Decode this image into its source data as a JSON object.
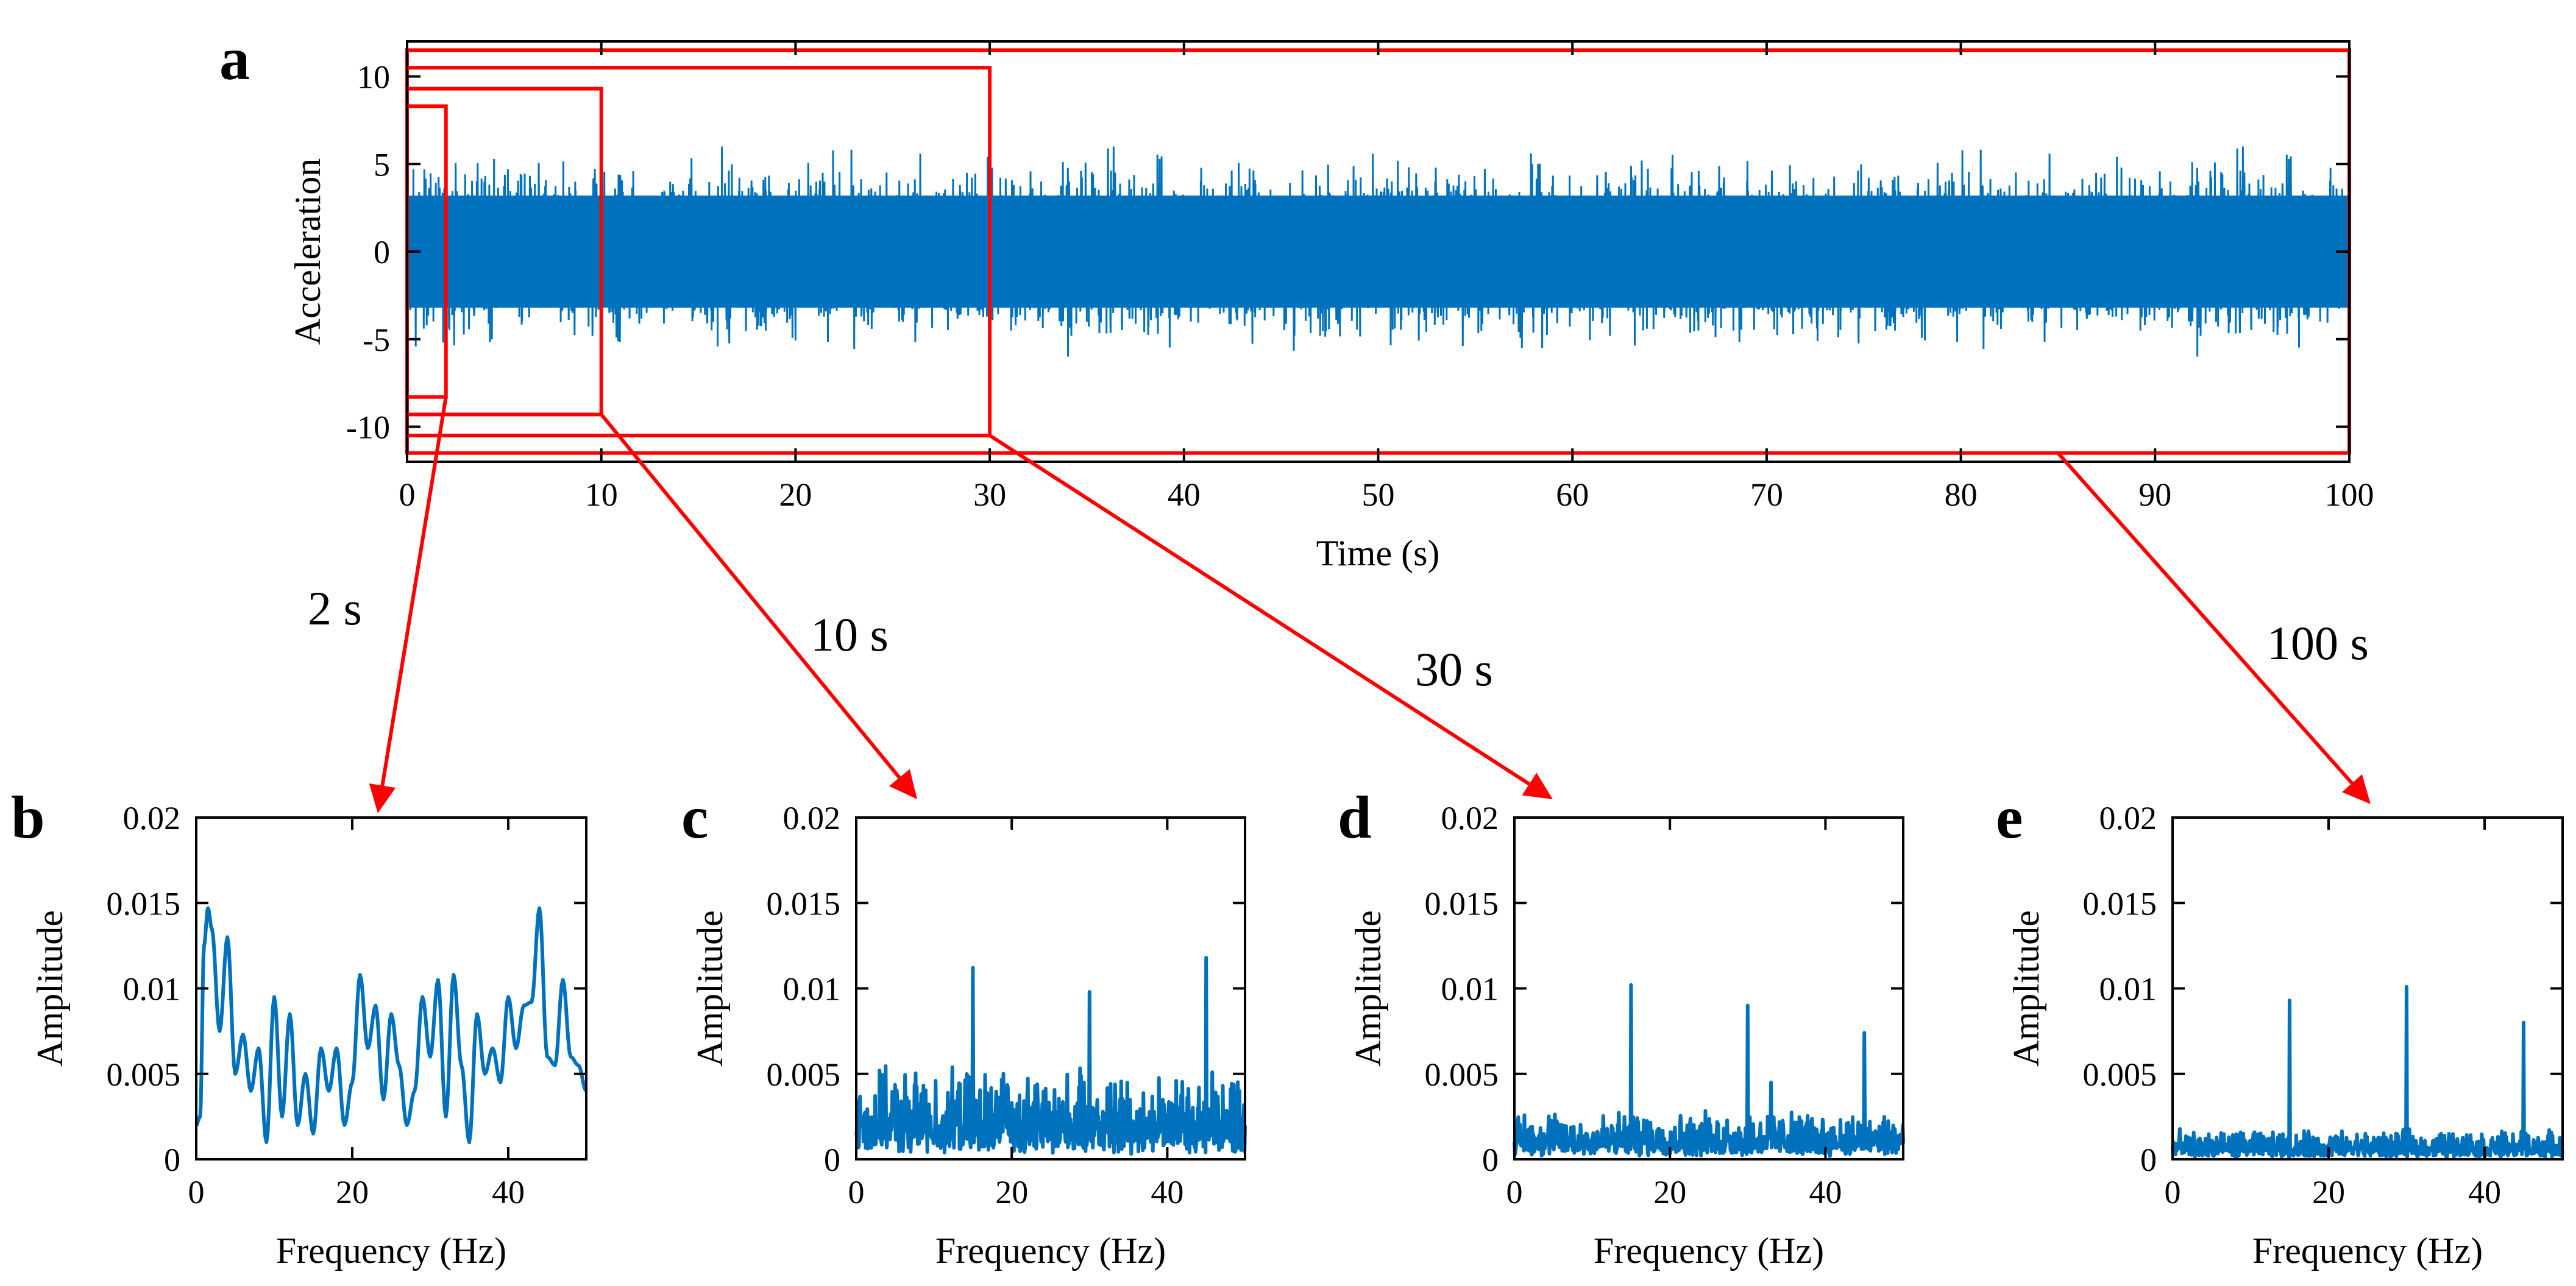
{
  "figure": {
    "colors": {
      "signal": "#0072BD",
      "highlight": "#FF0000",
      "axes": "#000000"
    }
  },
  "panels": {
    "a": {
      "letter": "a",
      "xlabel": "Time (s)",
      "ylabel": "Acceleration",
      "xticks": [
        "0",
        "10",
        "20",
        "30",
        "40",
        "50",
        "60",
        "70",
        "80",
        "90",
        "100"
      ],
      "yticks": [
        "10",
        "5",
        "0",
        "-5",
        "-10"
      ]
    },
    "b": {
      "letter": "b",
      "duration_label": "2 s"
    },
    "c": {
      "letter": "c",
      "duration_label": "10 s"
    },
    "d": {
      "letter": "d",
      "duration_label": "30 s"
    },
    "e": {
      "letter": "e",
      "duration_label": "100 s"
    },
    "spectrum_axes": {
      "xlabel": "Frequency (Hz)",
      "ylabel": "Amplitude",
      "xticks": [
        "0",
        "20",
        "40"
      ],
      "yticks": [
        "0.02",
        "0.015",
        "0.01",
        "0.005",
        "0"
      ]
    }
  },
  "chart_data": [
    {
      "id": "a",
      "type": "line",
      "xlabel": "Time (s)",
      "ylabel": "Acceleration",
      "xlim": [
        0,
        100
      ],
      "ylim": [
        -12,
        12
      ],
      "grid": false,
      "series": [
        {
          "values": "dense random acceleration signal",
          "envelope_typical": [
            -4.5,
            4.5
          ],
          "envelope_peak": [
            -6,
            6
          ]
        }
      ],
      "highlight_windows": [
        {
          "duration_s": 2,
          "t": [
            0,
            2
          ],
          "y": [
            -8.3,
            8.3
          ]
        },
        {
          "duration_s": 10,
          "t": [
            0,
            10
          ],
          "y": [
            -9.3,
            9.3
          ]
        },
        {
          "duration_s": 30,
          "t": [
            0,
            30
          ],
          "y": [
            -10.5,
            10.5
          ]
        },
        {
          "duration_s": 100,
          "t": [
            0,
            100
          ],
          "y": [
            -11.5,
            11.5
          ]
        }
      ]
    },
    {
      "id": "b",
      "type": "line",
      "window_s": 2,
      "xlabel": "Frequency (Hz)",
      "ylabel": "Amplitude",
      "xlim": [
        0,
        50
      ],
      "ylim": [
        0,
        0.02
      ],
      "x": [
        0,
        0.5,
        1,
        1.5,
        2,
        3,
        4,
        5,
        6,
        7,
        8,
        9,
        10,
        11,
        12,
        13,
        14,
        15,
        16,
        17,
        18,
        19,
        20,
        21,
        22,
        23,
        24,
        25,
        26,
        27,
        28,
        29,
        30,
        31,
        32,
        33,
        34,
        35,
        36,
        37,
        38,
        39,
        40,
        41,
        42,
        43,
        44,
        45,
        46,
        47,
        48,
        49,
        50
      ],
      "y": [
        0.002,
        0.0025,
        0.0125,
        0.0147,
        0.0135,
        0.0075,
        0.013,
        0.005,
        0.0073,
        0.004,
        0.0065,
        0.001,
        0.0095,
        0.0025,
        0.0085,
        0.002,
        0.005,
        0.0015,
        0.0065,
        0.004,
        0.0065,
        0.002,
        0.0045,
        0.0108,
        0.0065,
        0.009,
        0.0035,
        0.0085,
        0.0055,
        0.002,
        0.004,
        0.0095,
        0.006,
        0.0105,
        0.0025,
        0.0108,
        0.0055,
        0.001,
        0.0085,
        0.005,
        0.0065,
        0.0045,
        0.0095,
        0.0065,
        0.009,
        0.0092,
        0.0147,
        0.006,
        0.0055,
        0.0105,
        0.006,
        0.0055,
        0.004
      ]
    },
    {
      "id": "c",
      "type": "line",
      "window_s": 10,
      "xlabel": "Frequency (Hz)",
      "ylabel": "Amplitude",
      "xlim": [
        0,
        50
      ],
      "ylim": [
        0,
        0.02
      ],
      "noise_floor": [
        0,
        0.0055
      ],
      "peaks": [
        {
          "x": 15,
          "y": 0.0112
        },
        {
          "x": 30,
          "y": 0.0098
        },
        {
          "x": 45,
          "y": 0.0118
        }
      ]
    },
    {
      "id": "d",
      "type": "line",
      "window_s": 30,
      "xlabel": "Frequency (Hz)",
      "ylabel": "Amplitude",
      "xlim": [
        0,
        50
      ],
      "ylim": [
        0,
        0.02
      ],
      "noise_floor": [
        0,
        0.003
      ],
      "peaks": [
        {
          "x": 15,
          "y": 0.0102
        },
        {
          "x": 30,
          "y": 0.009
        },
        {
          "x": 33,
          "y": 0.0045
        },
        {
          "x": 45,
          "y": 0.0074
        }
      ]
    },
    {
      "id": "e",
      "type": "line",
      "window_s": 100,
      "xlabel": "Frequency (Hz)",
      "ylabel": "Amplitude",
      "xlim": [
        0,
        50
      ],
      "ylim": [
        0,
        0.02
      ],
      "noise_floor": [
        0,
        0.0018
      ],
      "peaks": [
        {
          "x": 15,
          "y": 0.0093
        },
        {
          "x": 30,
          "y": 0.0101
        },
        {
          "x": 45,
          "y": 0.008
        }
      ]
    }
  ]
}
